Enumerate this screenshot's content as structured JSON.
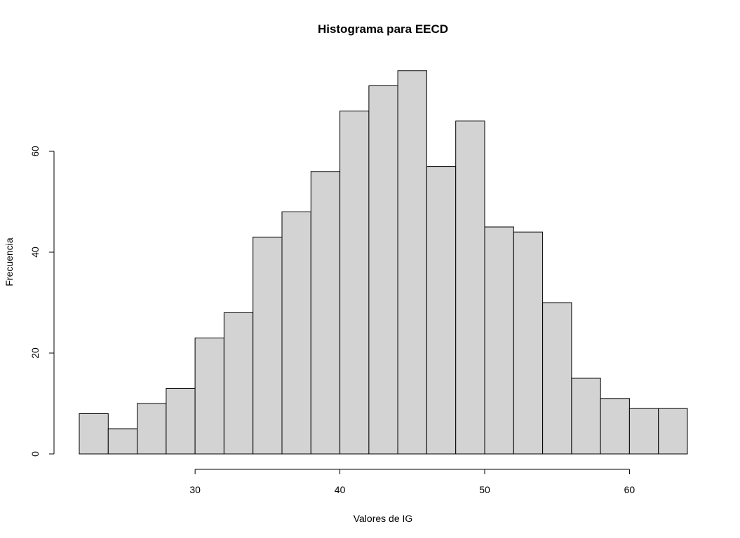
{
  "chart_data": {
    "type": "bar",
    "title": "Histograma para EECD",
    "xlabel": "Valores de IG",
    "ylabel": "Frecuencia",
    "bins": [
      {
        "start": 22,
        "end": 24,
        "count": 8
      },
      {
        "start": 24,
        "end": 26,
        "count": 5
      },
      {
        "start": 26,
        "end": 28,
        "count": 10
      },
      {
        "start": 28,
        "end": 30,
        "count": 13
      },
      {
        "start": 30,
        "end": 32,
        "count": 23
      },
      {
        "start": 32,
        "end": 34,
        "count": 28
      },
      {
        "start": 34,
        "end": 36,
        "count": 43
      },
      {
        "start": 36,
        "end": 38,
        "count": 48
      },
      {
        "start": 38,
        "end": 40,
        "count": 56
      },
      {
        "start": 40,
        "end": 42,
        "count": 68
      },
      {
        "start": 42,
        "end": 44,
        "count": 73
      },
      {
        "start": 44,
        "end": 46,
        "count": 76
      },
      {
        "start": 46,
        "end": 48,
        "count": 57
      },
      {
        "start": 48,
        "end": 50,
        "count": 66
      },
      {
        "start": 50,
        "end": 52,
        "count": 45
      },
      {
        "start": 52,
        "end": 54,
        "count": 44
      },
      {
        "start": 54,
        "end": 56,
        "count": 30
      },
      {
        "start": 56,
        "end": 58,
        "count": 15
      },
      {
        "start": 58,
        "end": 60,
        "count": 11
      },
      {
        "start": 60,
        "end": 62,
        "count": 9
      },
      {
        "start": 62,
        "end": 64,
        "count": 9
      }
    ],
    "x_ticks": [
      30,
      40,
      50,
      60
    ],
    "y_ticks": [
      0,
      20,
      40,
      60
    ],
    "x_tick_labels": [
      "30",
      "40",
      "50",
      "60"
    ],
    "y_tick_labels": [
      "0",
      "20",
      "40",
      "60"
    ],
    "bar_color": "#d3d3d3",
    "edge_color": "#000000",
    "grid": false,
    "legend": "none"
  }
}
